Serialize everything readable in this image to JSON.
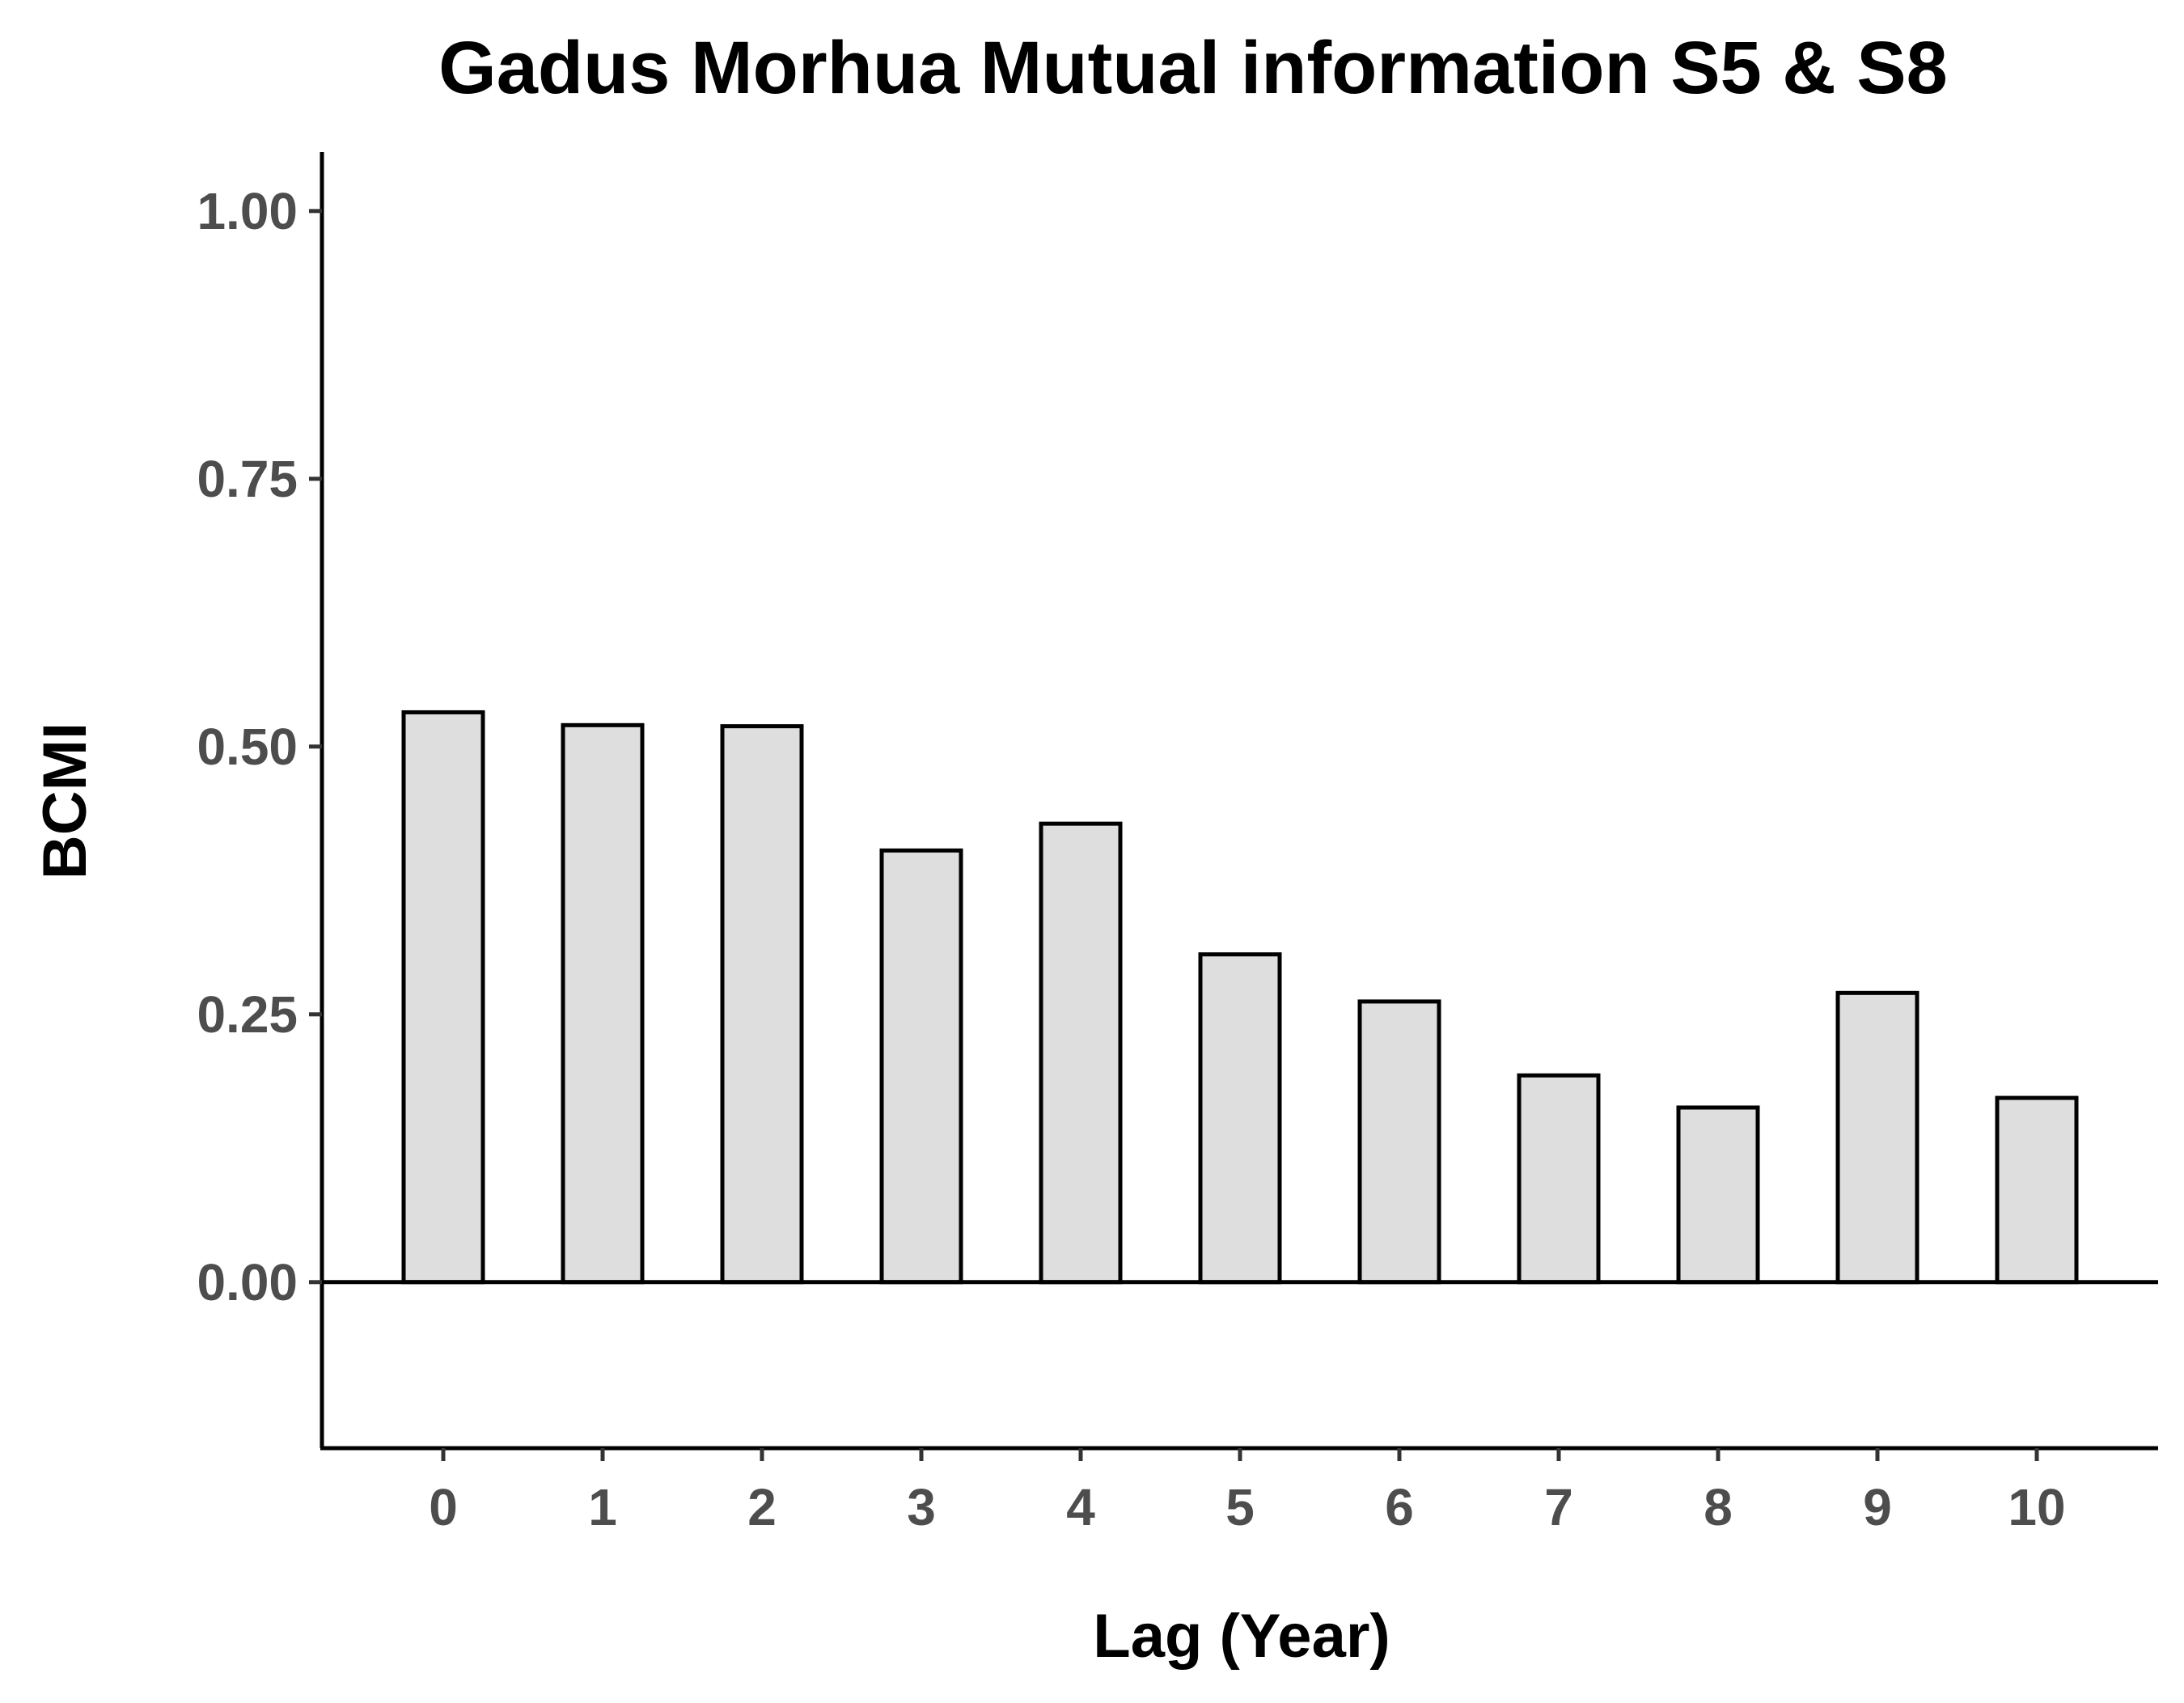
{
  "chart_data": {
    "type": "bar",
    "title": "Gadus Morhua Mutual information S5 & S8",
    "xlabel": "Lag (Year)",
    "ylabel": "BCMI",
    "categories": [
      "0",
      "1",
      "2",
      "3",
      "4",
      "5",
      "6",
      "7",
      "8",
      "9",
      "10"
    ],
    "values": [
      0.532,
      0.52,
      0.519,
      0.403,
      0.428,
      0.306,
      0.262,
      0.193,
      0.163,
      0.27,
      0.172
    ],
    "ylim": [
      -0.155,
      1.055
    ],
    "yticks": [
      0,
      0.25,
      0.5,
      0.75,
      1
    ],
    "ytick_labels": [
      "0.00",
      "0.25",
      "0.50",
      "0.75",
      "1.00"
    ],
    "reference_line_y": 0,
    "grid": false,
    "legend": "none",
    "bar_fill": "#dedede",
    "bar_stroke": "#000000",
    "tick_label_color": "#4d4d4d"
  }
}
